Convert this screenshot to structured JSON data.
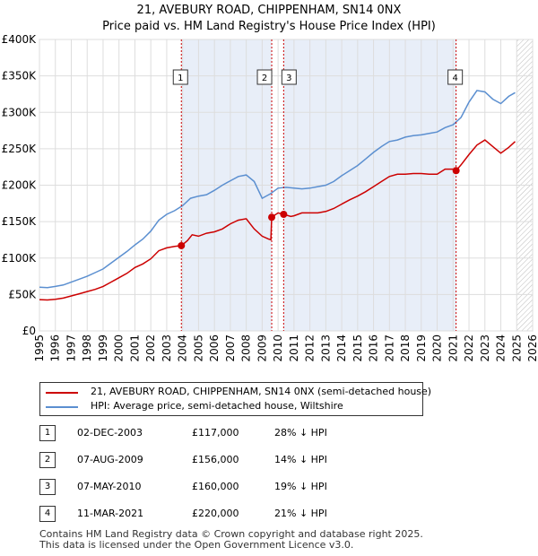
{
  "title_line1": "21, AVEBURY ROAD, CHIPPENHAM, SN14 0NX",
  "title_line2": "Price paid vs. HM Land Registry's House Price Index (HPI)",
  "colors": {
    "price": "#cc0000",
    "hpi": "#5b8fd0",
    "grid": "#dddddd",
    "shade": "#e8eef8",
    "vline": "#cc0000"
  },
  "chart_data": {
    "type": "line",
    "title": "Price paid vs. HM Land Registry's House Price Index (HPI)",
    "xlim": [
      1995,
      2026
    ],
    "ylim": [
      0,
      400000
    ],
    "x_ticks": [
      1995,
      1996,
      1997,
      1998,
      1999,
      2000,
      2001,
      2002,
      2003,
      2004,
      2005,
      2006,
      2007,
      2008,
      2009,
      2010,
      2011,
      2012,
      2013,
      2014,
      2015,
      2016,
      2017,
      2018,
      2019,
      2020,
      2021,
      2022,
      2023,
      2024,
      2025,
      2026
    ],
    "y_ticks": [
      0,
      50000,
      100000,
      150000,
      200000,
      250000,
      300000,
      350000,
      400000
    ],
    "y_tick_labels": [
      "£0",
      "£50K",
      "£100K",
      "£150K",
      "£200K",
      "£250K",
      "£300K",
      "£350K",
      "£400K"
    ],
    "hatched_from": 2025.0,
    "series": [
      {
        "name": "21, AVEBURY ROAD, CHIPPENHAM, SN14 0NX (semi-detached house)",
        "x": [
          1995.0,
          1995.5,
          1996.0,
          1996.5,
          1997.0,
          1997.5,
          1998.0,
          1998.5,
          1999.0,
          1999.5,
          2000.0,
          2000.5,
          2001.0,
          2001.5,
          2002.0,
          2002.5,
          2003.0,
          2003.5,
          2003.92,
          2004.3,
          2004.6,
          2005.0,
          2005.5,
          2006.0,
          2006.5,
          2007.0,
          2007.5,
          2008.0,
          2008.5,
          2009.0,
          2009.4,
          2009.55,
          2009.6,
          2010.0,
          2010.35,
          2010.8,
          2011.0,
          2011.5,
          2012.0,
          2012.5,
          2013.0,
          2013.5,
          2014.0,
          2014.5,
          2015.0,
          2015.5,
          2016.0,
          2016.5,
          2017.0,
          2017.5,
          2018.0,
          2018.5,
          2019.0,
          2019.5,
          2020.0,
          2020.5,
          2021.0,
          2021.19,
          2021.5,
          2022.0,
          2022.5,
          2023.0,
          2023.5,
          2024.0,
          2024.5,
          2024.9
        ],
        "y": [
          43000,
          42500,
          43500,
          45000,
          48000,
          51000,
          54000,
          57000,
          61000,
          67000,
          73000,
          79000,
          87000,
          92000,
          99000,
          110000,
          114000,
          116000,
          117000,
          124000,
          132000,
          130000,
          134000,
          136000,
          140000,
          147000,
          152000,
          154000,
          140000,
          130000,
          126000,
          125000,
          156000,
          162000,
          160000,
          157000,
          158000,
          162000,
          162000,
          162000,
          164000,
          168000,
          174000,
          180000,
          185000,
          191000,
          198000,
          205000,
          212000,
          215000,
          215000,
          216000,
          216000,
          215000,
          215000,
          222000,
          222000,
          220000,
          228000,
          242000,
          255000,
          262000,
          253000,
          244000,
          252000,
          260000
        ]
      },
      {
        "name": "HPI: Average price, semi-detached house, Wiltshire",
        "x": [
          1995.0,
          1995.5,
          1996.0,
          1996.5,
          1997.0,
          1997.5,
          1998.0,
          1998.5,
          1999.0,
          1999.5,
          2000.0,
          2000.5,
          2001.0,
          2001.5,
          2002.0,
          2002.5,
          2003.0,
          2003.5,
          2004.0,
          2004.5,
          2005.0,
          2005.5,
          2006.0,
          2006.5,
          2007.0,
          2007.5,
          2008.0,
          2008.5,
          2009.0,
          2009.5,
          2010.0,
          2010.5,
          2011.0,
          2011.5,
          2012.0,
          2012.5,
          2013.0,
          2013.5,
          2014.0,
          2014.5,
          2015.0,
          2015.5,
          2016.0,
          2016.5,
          2017.0,
          2017.5,
          2018.0,
          2018.5,
          2019.0,
          2019.5,
          2020.0,
          2020.5,
          2021.0,
          2021.5,
          2022.0,
          2022.5,
          2023.0,
          2023.5,
          2024.0,
          2024.5,
          2024.9
        ],
        "y": [
          60000,
          59500,
          61000,
          63000,
          67000,
          71000,
          75000,
          80000,
          85000,
          93000,
          101000,
          109000,
          118000,
          126000,
          137000,
          152000,
          160000,
          165000,
          172000,
          182000,
          185000,
          187000,
          193000,
          200000,
          206000,
          212000,
          214000,
          205000,
          182000,
          188000,
          196000,
          197000,
          196000,
          195000,
          196000,
          198000,
          200000,
          205000,
          213000,
          220000,
          227000,
          236000,
          245000,
          253000,
          260000,
          262000,
          266000,
          268000,
          269000,
          271000,
          273000,
          279000,
          283000,
          293000,
          314000,
          330000,
          328000,
          318000,
          312000,
          322000,
          327000
        ]
      }
    ],
    "sales": [
      {
        "num": "1",
        "date": "02-DEC-2003",
        "year": 2003.92,
        "price_label": "£117,000",
        "price": 117000,
        "hpi_note": "28% ↓ HPI"
      },
      {
        "num": "2",
        "date": "07-AUG-2009",
        "year": 2009.6,
        "price_label": "£156,000",
        "price": 156000,
        "hpi_note": "14% ↓ HPI"
      },
      {
        "num": "3",
        "date": "07-MAY-2010",
        "year": 2010.35,
        "price_label": "£160,000",
        "price": 160000,
        "hpi_note": "19% ↓ HPI"
      },
      {
        "num": "4",
        "date": "11-MAR-2021",
        "year": 2021.19,
        "price_label": "£220,000",
        "price": 220000,
        "hpi_note": "21% ↓ HPI"
      }
    ]
  },
  "legend": {
    "price_label": "21, AVEBURY ROAD, CHIPPENHAM, SN14 0NX (semi-detached house)",
    "hpi_label": "HPI: Average price, semi-detached house, Wiltshire"
  },
  "footer": {
    "line1": "Contains HM Land Registry data © Crown copyright and database right 2025.",
    "line2": "This data is licensed under the Open Government Licence v3.0."
  }
}
